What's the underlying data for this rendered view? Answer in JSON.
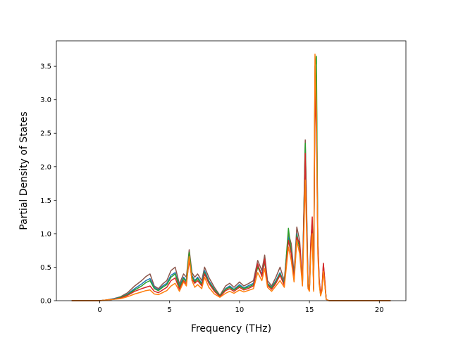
{
  "chart_data": {
    "type": "line",
    "title": "",
    "xlabel": "Frequency (THz)",
    "ylabel": "Partial Density of States",
    "xlim": [
      -3.1,
      21.9
    ],
    "ylim": [
      0.0,
      3.88
    ],
    "xticks": [
      0,
      5,
      10,
      15,
      20
    ],
    "yticks": [
      0.0,
      0.5,
      1.0,
      1.5,
      2.0,
      2.5,
      3.0,
      3.5
    ],
    "xtick_labels": [
      "0",
      "5",
      "10",
      "15",
      "20"
    ],
    "ytick_labels": [
      "0.0",
      "0.5",
      "1.0",
      "1.5",
      "2.0",
      "2.5",
      "3.0",
      "3.5"
    ],
    "grid": false,
    "legend": "none",
    "series": [
      {
        "color": "#8c564b",
        "scale": 1.0,
        "x": [
          -2.0,
          0.0,
          0.5,
          1.0,
          1.5,
          2.0,
          2.5,
          3.0,
          3.3,
          3.6,
          3.9,
          4.2,
          4.5,
          4.8,
          5.1,
          5.4,
          5.7,
          6.0,
          6.2,
          6.4,
          6.6,
          6.8,
          7.0,
          7.3,
          7.5,
          7.8,
          8.2,
          8.6,
          9.0,
          9.3,
          9.6,
          10.0,
          10.3,
          10.6,
          11.0,
          11.3,
          11.6,
          11.8,
          12.0,
          12.3,
          12.6,
          12.9,
          13.2,
          13.5,
          13.7,
          13.9,
          14.1,
          14.3,
          14.5,
          14.7,
          14.8,
          14.9,
          15.0,
          15.1,
          15.2,
          15.3,
          15.4,
          15.5,
          15.6,
          15.7,
          15.8,
          15.9,
          16.0,
          16.1,
          16.2,
          16.4,
          17.0,
          20.8
        ],
        "y": [
          0.0,
          0.0,
          0.01,
          0.03,
          0.06,
          0.12,
          0.22,
          0.3,
          0.36,
          0.4,
          0.22,
          0.18,
          0.25,
          0.3,
          0.45,
          0.5,
          0.25,
          0.4,
          0.35,
          0.76,
          0.42,
          0.35,
          0.4,
          0.3,
          0.5,
          0.35,
          0.2,
          0.08,
          0.22,
          0.26,
          0.2,
          0.28,
          0.22,
          0.25,
          0.3,
          0.6,
          0.45,
          0.68,
          0.3,
          0.22,
          0.35,
          0.5,
          0.3,
          1.0,
          0.85,
          0.4,
          1.1,
          0.9,
          0.3,
          2.4,
          1.4,
          0.25,
          0.2,
          0.9,
          1.2,
          0.2,
          3.4,
          3.2,
          0.9,
          0.3,
          0.1,
          0.2,
          0.55,
          0.3,
          0.02,
          0.0,
          0.0,
          0.0
        ]
      },
      {
        "color": "#1f77b4",
        "scale": 0.85,
        "x": [
          -2.0,
          0.0,
          0.5,
          1.0,
          1.5,
          2.0,
          2.5,
          3.0,
          3.3,
          3.6,
          3.9,
          4.2,
          4.5,
          4.8,
          5.1,
          5.4,
          5.7,
          6.0,
          6.2,
          6.4,
          6.6,
          6.8,
          7.0,
          7.3,
          7.5,
          7.8,
          8.2,
          8.6,
          9.0,
          9.3,
          9.6,
          10.0,
          10.3,
          10.6,
          11.0,
          11.3,
          11.6,
          11.8,
          12.0,
          12.3,
          12.6,
          12.9,
          13.2,
          13.5,
          13.7,
          13.9,
          14.1,
          14.3,
          14.5,
          14.7,
          14.8,
          14.9,
          15.0,
          15.1,
          15.2,
          15.3,
          15.4,
          15.5,
          15.6,
          15.7,
          15.8,
          15.9,
          16.0,
          16.1,
          16.2,
          16.4,
          17.0,
          20.8
        ],
        "y": [
          0.0,
          0.0,
          0.01,
          0.03,
          0.05,
          0.1,
          0.18,
          0.25,
          0.3,
          0.33,
          0.2,
          0.16,
          0.22,
          0.26,
          0.38,
          0.42,
          0.22,
          0.35,
          0.3,
          0.7,
          0.38,
          0.3,
          0.35,
          0.26,
          0.45,
          0.3,
          0.17,
          0.07,
          0.18,
          0.22,
          0.17,
          0.24,
          0.19,
          0.22,
          0.26,
          0.52,
          0.4,
          0.6,
          0.26,
          0.2,
          0.3,
          0.42,
          0.26,
          0.95,
          0.75,
          0.35,
          1.0,
          0.8,
          0.26,
          2.3,
          1.3,
          0.22,
          0.18,
          0.8,
          1.1,
          0.18,
          3.3,
          3.1,
          0.85,
          0.27,
          0.09,
          0.18,
          0.5,
          0.27,
          0.02,
          0.0,
          0.0,
          0.0
        ]
      },
      {
        "color": "#2ca02c",
        "scale": 0.8,
        "x": [
          -2.0,
          0.0,
          0.5,
          1.0,
          1.5,
          2.0,
          2.5,
          3.0,
          3.3,
          3.6,
          3.9,
          4.2,
          4.5,
          4.8,
          5.1,
          5.4,
          5.7,
          6.0,
          6.2,
          6.4,
          6.6,
          6.8,
          7.0,
          7.3,
          7.5,
          7.8,
          8.2,
          8.6,
          9.0,
          9.3,
          9.6,
          10.0,
          10.3,
          10.6,
          11.0,
          11.3,
          11.6,
          11.8,
          12.0,
          12.3,
          12.6,
          12.9,
          13.2,
          13.5,
          13.7,
          13.9,
          14.1,
          14.3,
          14.5,
          14.7,
          14.8,
          14.9,
          15.0,
          15.1,
          15.2,
          15.3,
          15.4,
          15.5,
          15.6,
          15.7,
          15.8,
          15.9,
          16.0,
          16.1,
          16.2,
          16.4,
          17.0,
          20.8
        ],
        "y": [
          0.0,
          0.0,
          0.01,
          0.02,
          0.05,
          0.09,
          0.16,
          0.22,
          0.27,
          0.3,
          0.18,
          0.15,
          0.2,
          0.24,
          0.35,
          0.4,
          0.2,
          0.33,
          0.28,
          0.72,
          0.36,
          0.28,
          0.33,
          0.24,
          0.42,
          0.28,
          0.16,
          0.07,
          0.17,
          0.2,
          0.16,
          0.22,
          0.18,
          0.2,
          0.24,
          0.5,
          0.38,
          0.58,
          0.25,
          0.19,
          0.28,
          0.4,
          0.25,
          1.08,
          0.72,
          0.33,
          0.98,
          0.78,
          0.25,
          2.35,
          1.25,
          0.21,
          0.17,
          0.78,
          1.15,
          0.17,
          3.5,
          3.65,
          0.8,
          0.26,
          0.08,
          0.17,
          0.48,
          0.26,
          0.02,
          0.0,
          0.0,
          0.0
        ]
      },
      {
        "color": "#d62728",
        "scale": 0.95,
        "x": [
          -2.0,
          0.0,
          0.5,
          1.0,
          1.5,
          2.0,
          2.5,
          3.0,
          3.3,
          3.6,
          3.9,
          4.2,
          4.5,
          4.8,
          5.1,
          5.4,
          5.7,
          6.0,
          6.2,
          6.4,
          6.6,
          6.8,
          7.0,
          7.3,
          7.5,
          7.8,
          8.2,
          8.6,
          9.0,
          9.3,
          9.6,
          10.0,
          10.3,
          10.6,
          11.0,
          11.3,
          11.6,
          11.8,
          12.0,
          12.3,
          12.6,
          12.9,
          13.2,
          13.5,
          13.7,
          13.9,
          14.1,
          14.3,
          14.5,
          14.7,
          14.8,
          14.9,
          15.0,
          15.1,
          15.2,
          15.3,
          15.4,
          15.5,
          15.6,
          15.7,
          15.8,
          15.9,
          16.0,
          16.1,
          16.2,
          16.4,
          17.0,
          20.8
        ],
        "y": [
          0.0,
          0.0,
          0.01,
          0.02,
          0.04,
          0.08,
          0.14,
          0.18,
          0.2,
          0.22,
          0.14,
          0.12,
          0.16,
          0.2,
          0.3,
          0.34,
          0.17,
          0.3,
          0.25,
          0.6,
          0.32,
          0.26,
          0.3,
          0.22,
          0.4,
          0.26,
          0.14,
          0.06,
          0.15,
          0.18,
          0.14,
          0.2,
          0.16,
          0.18,
          0.22,
          0.55,
          0.36,
          0.62,
          0.23,
          0.17,
          0.26,
          0.38,
          0.23,
          0.9,
          0.7,
          0.32,
          0.95,
          0.85,
          0.24,
          2.2,
          1.2,
          0.2,
          0.16,
          0.85,
          1.25,
          0.16,
          3.2,
          2.5,
          0.9,
          0.3,
          0.1,
          0.2,
          0.56,
          0.3,
          0.02,
          0.0,
          0.0,
          0.0
        ]
      },
      {
        "color": "#ff7f0e",
        "scale": 0.7,
        "x": [
          -2.0,
          0.0,
          0.5,
          1.0,
          1.5,
          2.0,
          2.5,
          3.0,
          3.3,
          3.6,
          3.9,
          4.2,
          4.5,
          4.8,
          5.1,
          5.4,
          5.7,
          6.0,
          6.2,
          6.4,
          6.6,
          6.8,
          7.0,
          7.3,
          7.5,
          7.8,
          8.2,
          8.6,
          9.0,
          9.3,
          9.6,
          10.0,
          10.3,
          10.6,
          11.0,
          11.3,
          11.6,
          11.8,
          12.0,
          12.3,
          12.6,
          12.9,
          13.2,
          13.5,
          13.7,
          13.9,
          14.1,
          14.3,
          14.5,
          14.7,
          14.8,
          14.9,
          15.0,
          15.1,
          15.2,
          15.3,
          15.4,
          15.5,
          15.6,
          15.7,
          15.8,
          15.9,
          16.0,
          16.1,
          16.2,
          16.4,
          17.0,
          20.8
        ],
        "y": [
          0.0,
          0.0,
          0.01,
          0.02,
          0.03,
          0.06,
          0.1,
          0.13,
          0.15,
          0.16,
          0.1,
          0.09,
          0.12,
          0.15,
          0.22,
          0.26,
          0.14,
          0.28,
          0.22,
          0.66,
          0.3,
          0.2,
          0.24,
          0.18,
          0.35,
          0.2,
          0.1,
          0.05,
          0.11,
          0.14,
          0.11,
          0.16,
          0.13,
          0.15,
          0.18,
          0.42,
          0.3,
          0.48,
          0.2,
          0.14,
          0.22,
          0.3,
          0.2,
          0.8,
          0.6,
          0.28,
          0.9,
          0.7,
          0.22,
          1.8,
          1.0,
          0.18,
          0.14,
          0.7,
          1.0,
          0.14,
          3.68,
          2.8,
          0.7,
          0.24,
          0.07,
          0.15,
          0.44,
          0.24,
          0.02,
          0.0,
          0.0,
          0.0
        ]
      }
    ]
  }
}
